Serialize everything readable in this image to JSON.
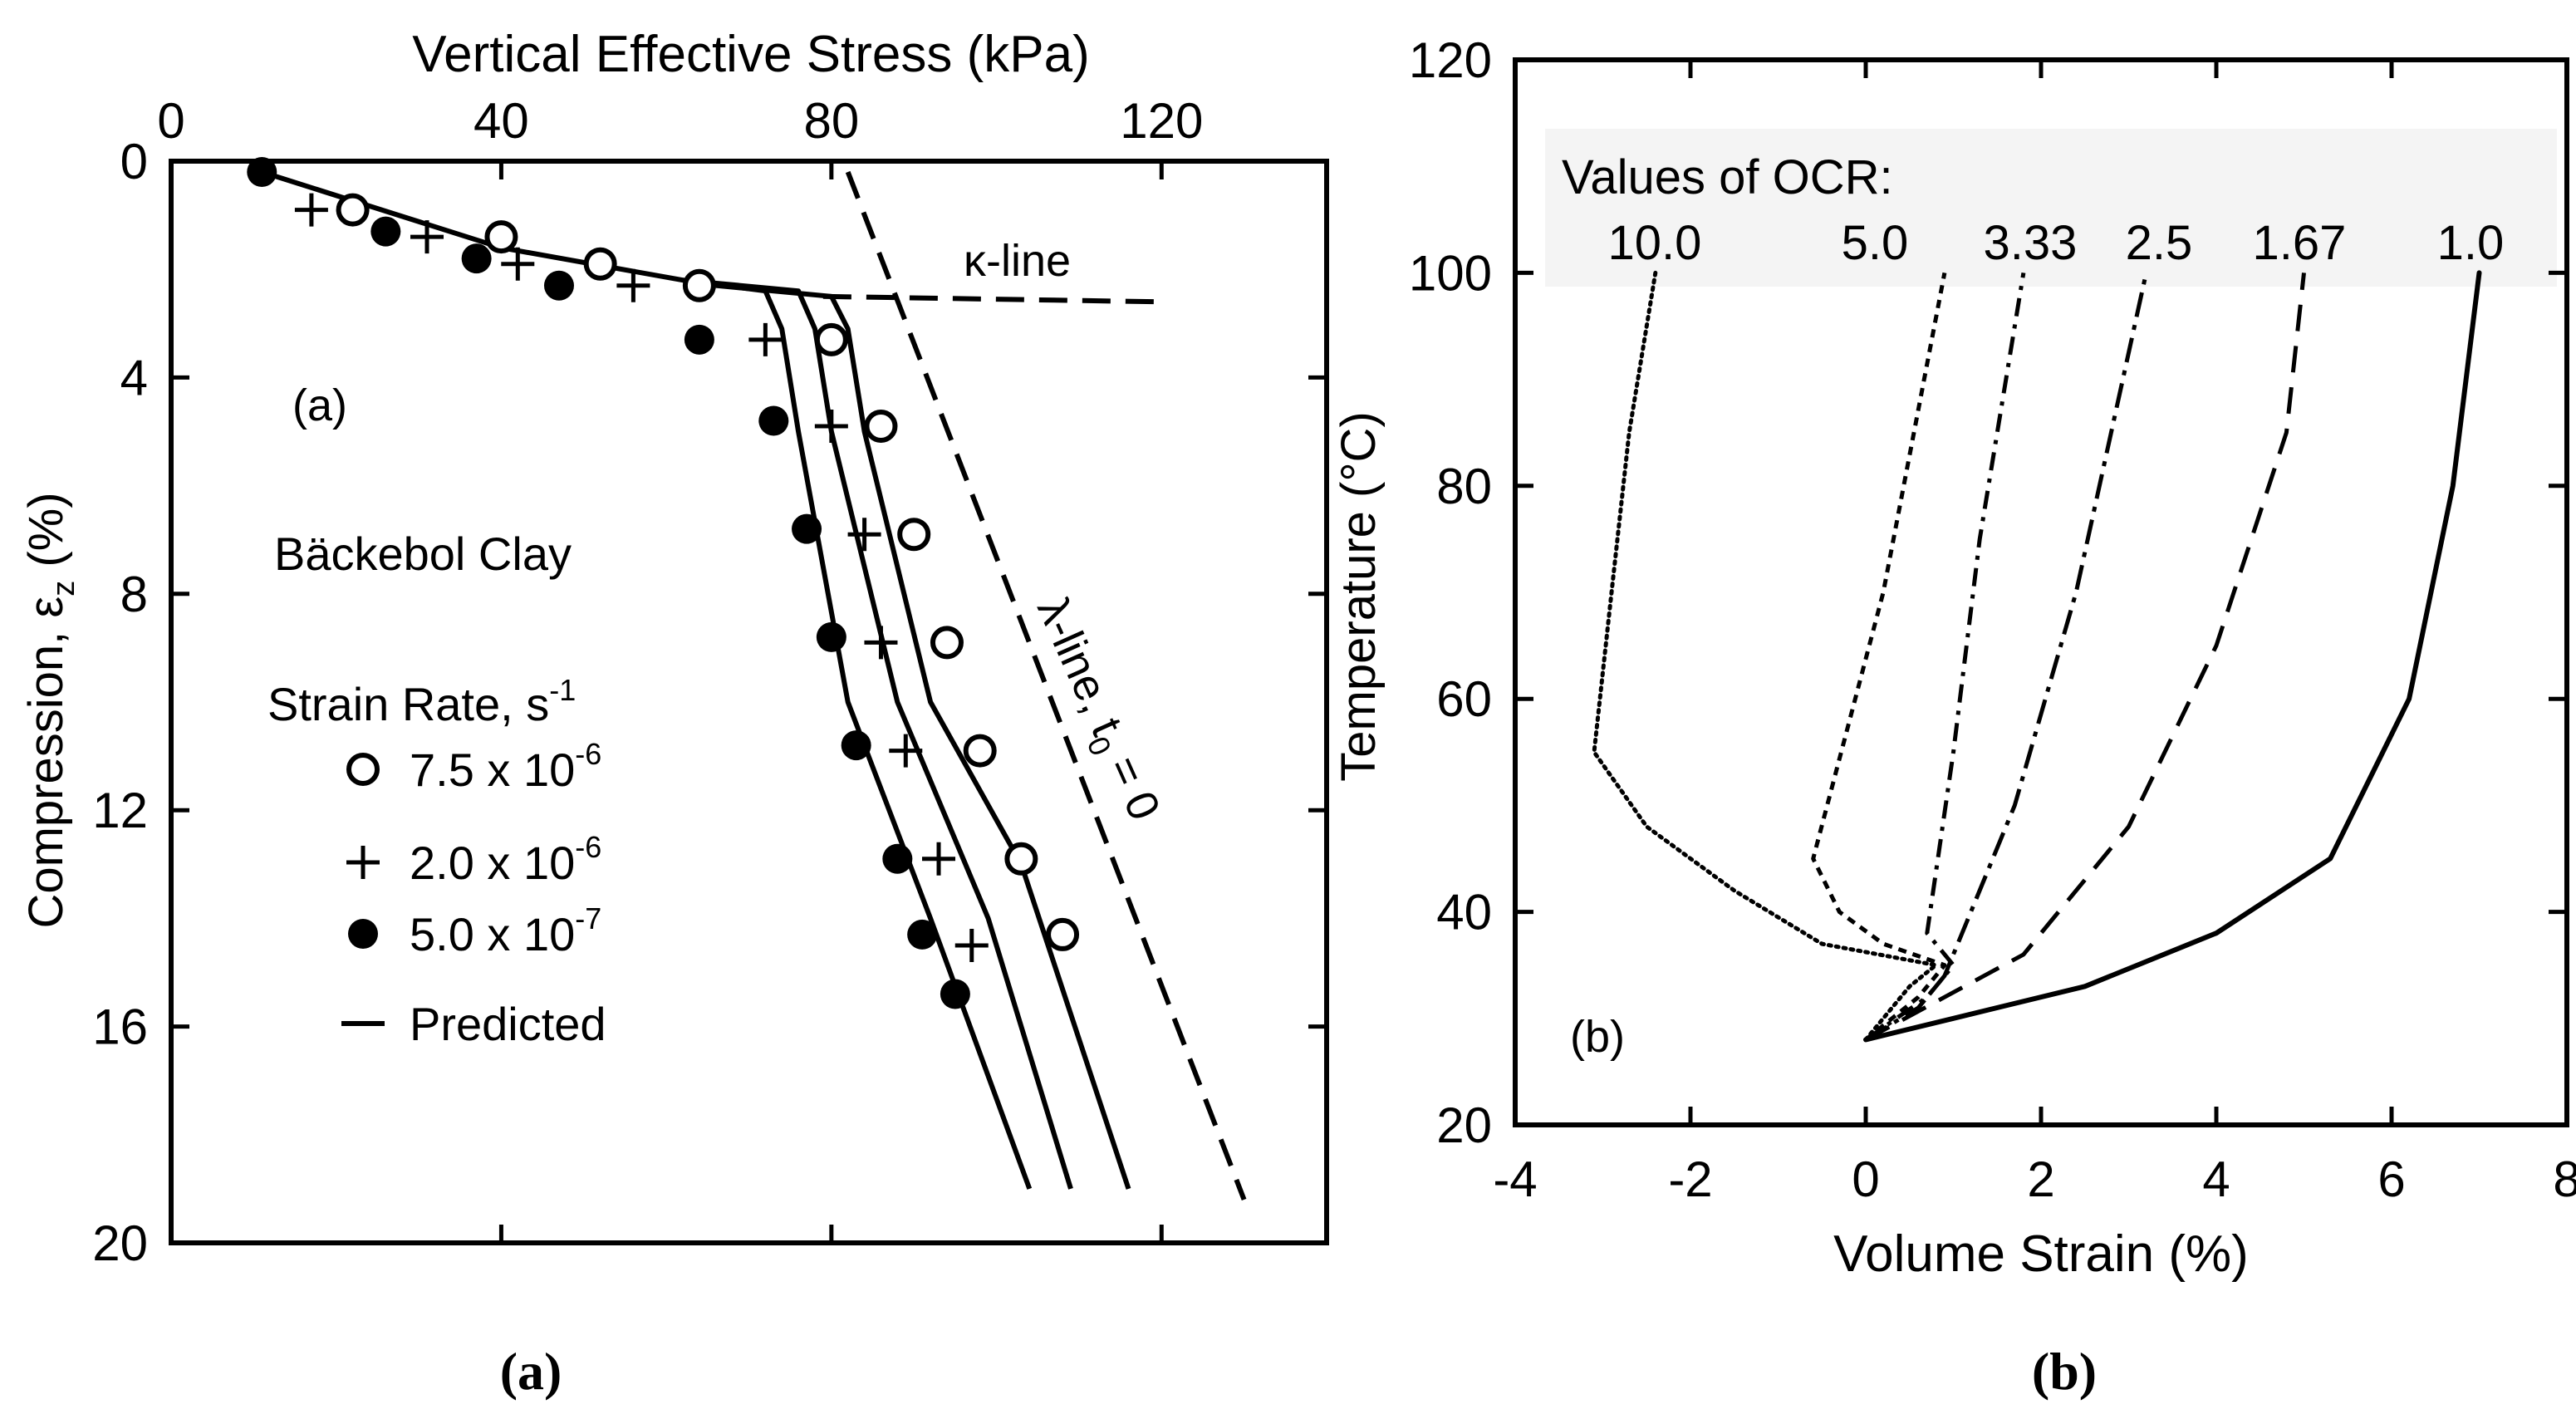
{
  "chart_data": [
    {
      "type": "scatter",
      "panel_label": "(a)",
      "caption": "(a)",
      "title": "Bäckebol Clay",
      "xlabel": "Vertical Effective Stress (kPa)",
      "ylabel_main": "Compression, ε",
      "ylabel_sub": "z",
      "ylabel_unit": " (%)",
      "xlim": [
        0,
        140
      ],
      "ylim": [
        0,
        20
      ],
      "y_inverted": true,
      "x_axis_position": "top",
      "xticks": [
        0,
        40,
        80,
        120
      ],
      "yticks": [
        0,
        4,
        8,
        12,
        16,
        20
      ],
      "grid": false,
      "legend_title": "Strain Rate, s",
      "legend_title_exp": "-1",
      "legend_position": "left-middle",
      "series": [
        {
          "name": "7.5 x 10",
          "exp": "-6",
          "marker": "open-circle",
          "points": [
            [
              22,
              0.9
            ],
            [
              40,
              1.4
            ],
            [
              52,
              1.9
            ],
            [
              64,
              2.3
            ],
            [
              80,
              3.3
            ],
            [
              86,
              4.9
            ],
            [
              90,
              6.9
            ],
            [
              94,
              8.9
            ],
            [
              98,
              10.9
            ],
            [
              103,
              12.9
            ],
            [
              108,
              14.3
            ]
          ]
        },
        {
          "name": "2.0 x 10",
          "exp": "-6",
          "marker": "plus",
          "points": [
            [
              17,
              0.9
            ],
            [
              31,
              1.4
            ],
            [
              42,
              1.9
            ],
            [
              56,
              2.3
            ],
            [
              72,
              3.3
            ],
            [
              80,
              4.9
            ],
            [
              84,
              6.9
            ],
            [
              86,
              8.9
            ],
            [
              89,
              10.9
            ],
            [
              93,
              12.9
            ],
            [
              97,
              14.5
            ]
          ]
        },
        {
          "name": "5.0 x 10",
          "exp": "-7",
          "marker": "filled-circle",
          "points": [
            [
              11,
              0.2
            ],
            [
              26,
              1.3
            ],
            [
              37,
              1.8
            ],
            [
              47,
              2.3
            ],
            [
              64,
              3.3
            ],
            [
              73,
              4.8
            ],
            [
              77,
              6.8
            ],
            [
              80,
              8.8
            ],
            [
              83,
              10.8
            ],
            [
              88,
              12.9
            ],
            [
              91,
              14.3
            ],
            [
              95,
              15.4
            ]
          ]
        },
        {
          "name": "Predicted",
          "marker": "line",
          "curves": [
            [
              [
                11,
                0.2
              ],
              [
                40,
                1.6
              ],
              [
                62,
                2.2
              ],
              [
                72,
                2.4
              ],
              [
                74,
                3.1
              ],
              [
                76,
                5.0
              ],
              [
                82,
                10.0
              ],
              [
                92,
                14.0
              ],
              [
                104,
                19.0
              ]
            ],
            [
              [
                62,
                2.2
              ],
              [
                76,
                2.4
              ],
              [
                78,
                3.1
              ],
              [
                80,
                5.0
              ],
              [
                88,
                10.0
              ],
              [
                99,
                14.0
              ],
              [
                109,
                19.0
              ]
            ],
            [
              [
                66,
                2.3
              ],
              [
                80,
                2.5
              ],
              [
                82,
                3.1
              ],
              [
                84,
                5.0
              ],
              [
                92,
                10.0
              ],
              [
                103,
                13.0
              ],
              [
                116,
                19.0
              ]
            ]
          ]
        }
      ],
      "reference_lines": [
        {
          "name": "κ-line",
          "style": "dashed",
          "points": [
            [
              79,
              2.5
            ],
            [
              120,
              2.6
            ]
          ]
        },
        {
          "name": "λ-line, t",
          "sub": "0",
          "suffix": " = 0",
          "style": "dashed",
          "points": [
            [
              82,
              0.2
            ],
            [
              130,
              19.2
            ]
          ]
        }
      ]
    },
    {
      "type": "line",
      "panel_label": "(b)",
      "caption": "(b)",
      "xlabel": "Volume Strain (%)",
      "ylabel": "Temperature (°C)",
      "xlim": [
        -4,
        8
      ],
      "ylim": [
        20,
        120
      ],
      "xticks": [
        -4,
        -2,
        0,
        2,
        4,
        6,
        8
      ],
      "yticks": [
        20,
        40,
        60,
        80,
        100,
        120
      ],
      "grid": false,
      "legend_title": "Values of OCR:",
      "legend_position": "top",
      "series": [
        {
          "name": "10.0",
          "style": "dotted",
          "points": [
            [
              0,
              28
            ],
            [
              0.5,
              33
            ],
            [
              0.8,
              35
            ],
            [
              -0.5,
              37
            ],
            [
              -1.5,
              42
            ],
            [
              -2.5,
              48
            ],
            [
              -3.1,
              55
            ],
            [
              -2.9,
              70
            ],
            [
              -2.7,
              85
            ],
            [
              -2.4,
              100
            ]
          ]
        },
        {
          "name": "5.0",
          "style": "dotted-fine",
          "points": [
            [
              0,
              28
            ],
            [
              0.6,
              32
            ],
            [
              0.9,
              35
            ],
            [
              0.2,
              37
            ],
            [
              -0.3,
              40
            ],
            [
              -0.6,
              45
            ],
            [
              0.2,
              70
            ],
            [
              0.9,
              100
            ]
          ]
        },
        {
          "name": "3.33",
          "style": "dash-dot",
          "points": [
            [
              0,
              28
            ],
            [
              0.7,
              32
            ],
            [
              1.0,
              35
            ],
            [
              0.7,
              38
            ],
            [
              1.0,
              55
            ],
            [
              1.3,
              75
            ],
            [
              1.8,
              100
            ]
          ]
        },
        {
          "name": "2.5",
          "style": "dash-dot-dot",
          "points": [
            [
              0,
              28
            ],
            [
              0.6,
              31
            ],
            [
              0.9,
              34
            ],
            [
              1.7,
              50
            ],
            [
              2.4,
              70
            ],
            [
              3.2,
              100
            ]
          ]
        },
        {
          "name": "1.67",
          "style": "long-dash",
          "points": [
            [
              0,
              28
            ],
            [
              0.9,
              32
            ],
            [
              1.8,
              36
            ],
            [
              3.0,
              48
            ],
            [
              4.0,
              65
            ],
            [
              4.8,
              85
            ],
            [
              5.0,
              100
            ]
          ]
        },
        {
          "name": "1.0",
          "style": "solid",
          "points": [
            [
              0,
              28
            ],
            [
              1.0,
              30
            ],
            [
              2.5,
              33
            ],
            [
              4.0,
              38
            ],
            [
              5.3,
              45
            ],
            [
              6.2,
              60
            ],
            [
              6.7,
              80
            ],
            [
              7.0,
              100
            ]
          ]
        }
      ]
    }
  ]
}
